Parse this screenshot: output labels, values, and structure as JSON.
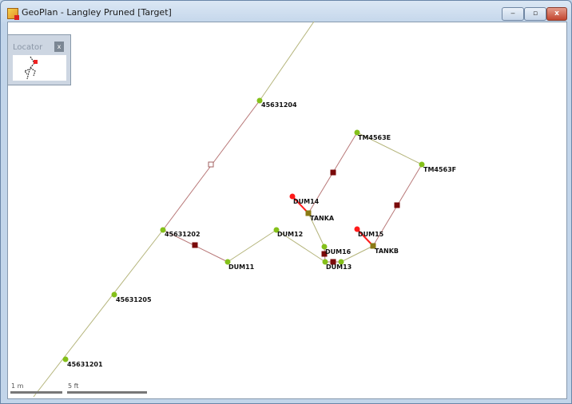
{
  "window": {
    "title": "GeoPlan - Langley Pruned [Target]",
    "minimize": "‒",
    "maximize": "▫",
    "close": "x"
  },
  "locator": {
    "title": "Locator",
    "close": "x"
  },
  "scale": {
    "metric": "1 m",
    "imperial": "5 ft"
  },
  "nodes": [
    {
      "label": "45631204",
      "type": "manhole"
    },
    {
      "label": "45631202",
      "type": "manhole"
    },
    {
      "label": "45631205",
      "type": "manhole"
    },
    {
      "label": "45631201",
      "type": "manhole"
    },
    {
      "label": "DUM11",
      "type": "manhole"
    },
    {
      "label": "DUM12",
      "type": "manhole"
    },
    {
      "label": "DUM13",
      "type": "manhole"
    },
    {
      "label": "DUM16",
      "type": "manhole"
    },
    {
      "label": "TANKA",
      "type": "storage"
    },
    {
      "label": "TANKB",
      "type": "storage"
    },
    {
      "label": "DUM14",
      "type": "outfall"
    },
    {
      "label": "DUM15",
      "type": "outfall"
    },
    {
      "label": "TM4563E",
      "type": "manhole"
    },
    {
      "label": "TM4563F",
      "type": "manhole"
    }
  ],
  "colors": {
    "manhole": "#84c01a",
    "outfall": "#ff1a1a",
    "storage": "#8a7a14",
    "pump": "#7a0a0a",
    "conduit_olive": "#b4b47a",
    "conduit_brown": "#b87878",
    "conduit_red": "#ff1a1a"
  }
}
